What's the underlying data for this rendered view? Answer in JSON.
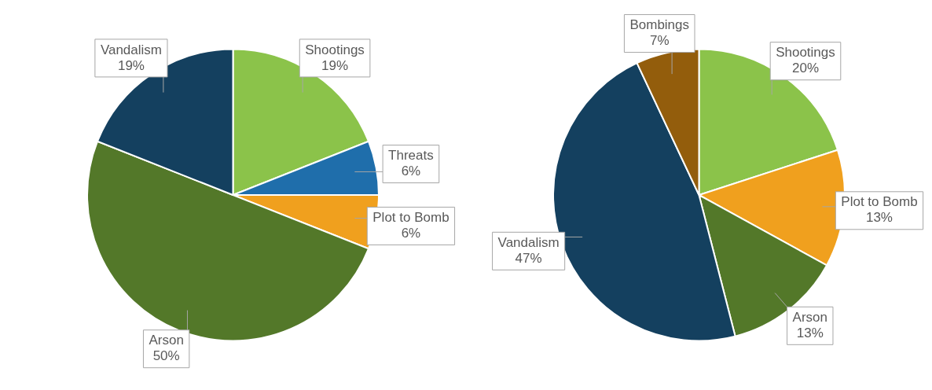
{
  "chart_data": [
    {
      "type": "pie",
      "categories": [
        "Shootings",
        "Threats",
        "Plot to Bomb",
        "Arson",
        "Vandalism"
      ],
      "values": [
        19,
        6,
        6,
        50,
        19
      ],
      "value_labels": [
        "19%",
        "6%",
        "6%",
        "50%",
        "19%"
      ],
      "colors": [
        "#8bc34a",
        "#1f6eab",
        "#f0a01e",
        "#537829",
        "#14405f"
      ],
      "legend": false
    },
    {
      "type": "pie",
      "categories": [
        "Shootings",
        "Plot to Bomb",
        "Arson",
        "Vandalism",
        "Bombings"
      ],
      "values": [
        20,
        13,
        13,
        47,
        7
      ],
      "value_labels": [
        "20%",
        "13%",
        "13%",
        "47%",
        "7%"
      ],
      "colors": [
        "#8bc34a",
        "#f0a01e",
        "#537829",
        "#14405f",
        "#935d0c"
      ],
      "legend": false
    }
  ]
}
